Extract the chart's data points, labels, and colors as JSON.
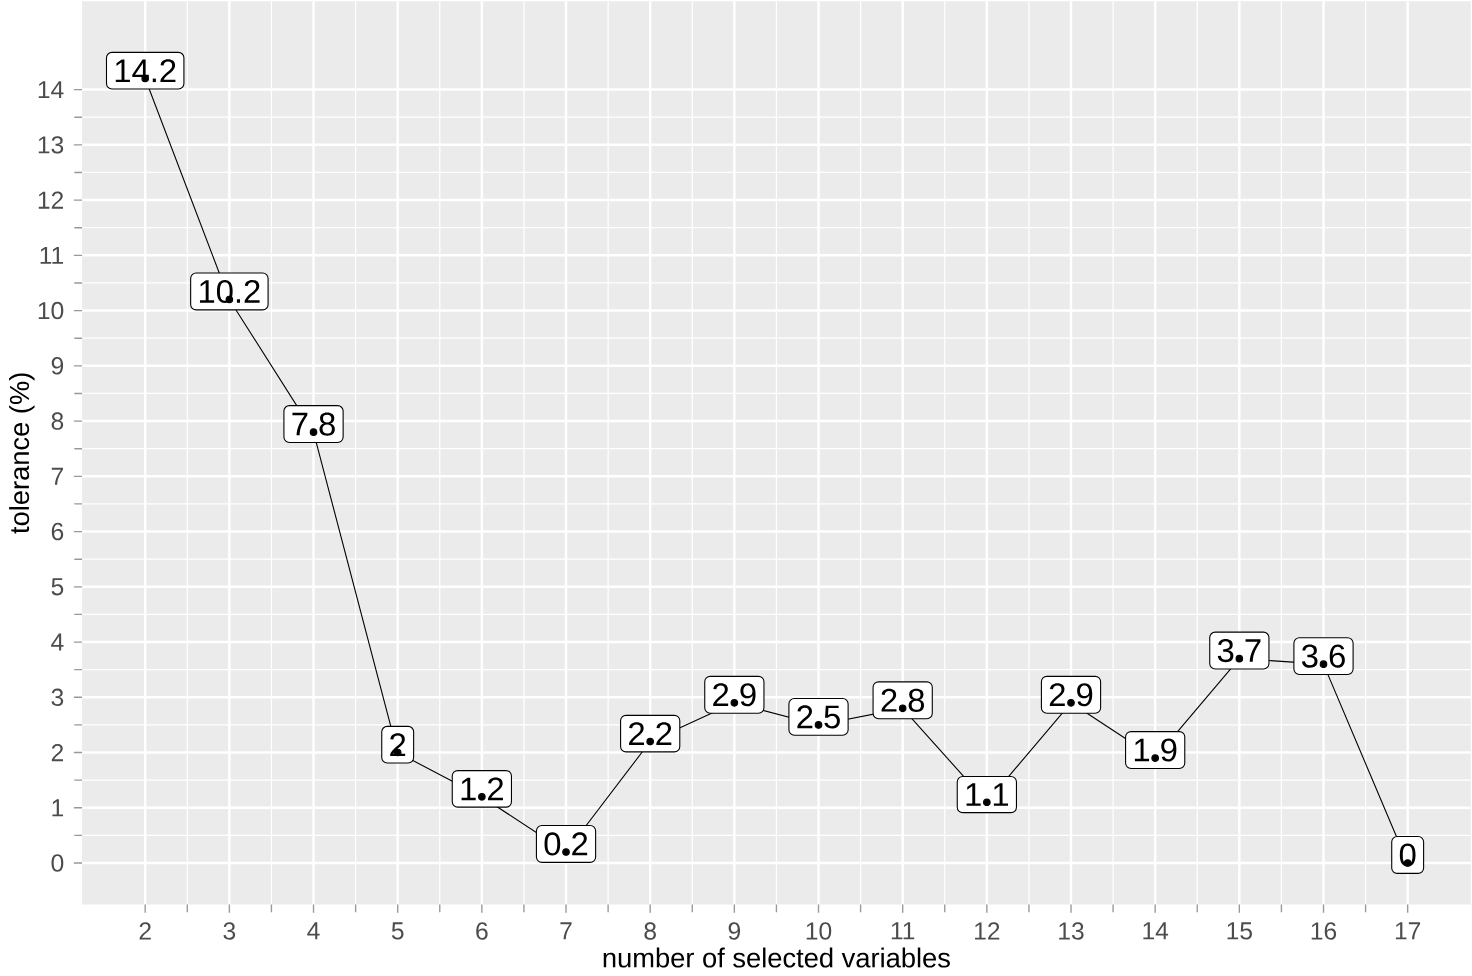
{
  "chart_data": {
    "type": "line",
    "xlabel": "number of selected variables",
    "ylabel": "tolerance (%)",
    "x": [
      2,
      3,
      4,
      5,
      6,
      7,
      8,
      9,
      10,
      11,
      12,
      13,
      14,
      15,
      16,
      17
    ],
    "values": [
      14.2,
      10.2,
      7.8,
      2,
      1.2,
      0.2,
      2.2,
      2.9,
      2.5,
      2.8,
      1.1,
      2.9,
      1.9,
      3.7,
      3.6,
      0
    ],
    "color": "#000000",
    "marker": "circle",
    "data_labels": true,
    "grid": true,
    "xlim": [
      1.25,
      17.75
    ],
    "ylim": [
      -0.75,
      15.6
    ],
    "xticks": [
      2,
      3,
      4,
      5,
      6,
      7,
      8,
      9,
      10,
      11,
      12,
      13,
      14,
      15,
      16,
      17
    ],
    "yticks": [
      0,
      1,
      2,
      3,
      4,
      5,
      6,
      7,
      8,
      9,
      10,
      11,
      12,
      13,
      14
    ]
  }
}
